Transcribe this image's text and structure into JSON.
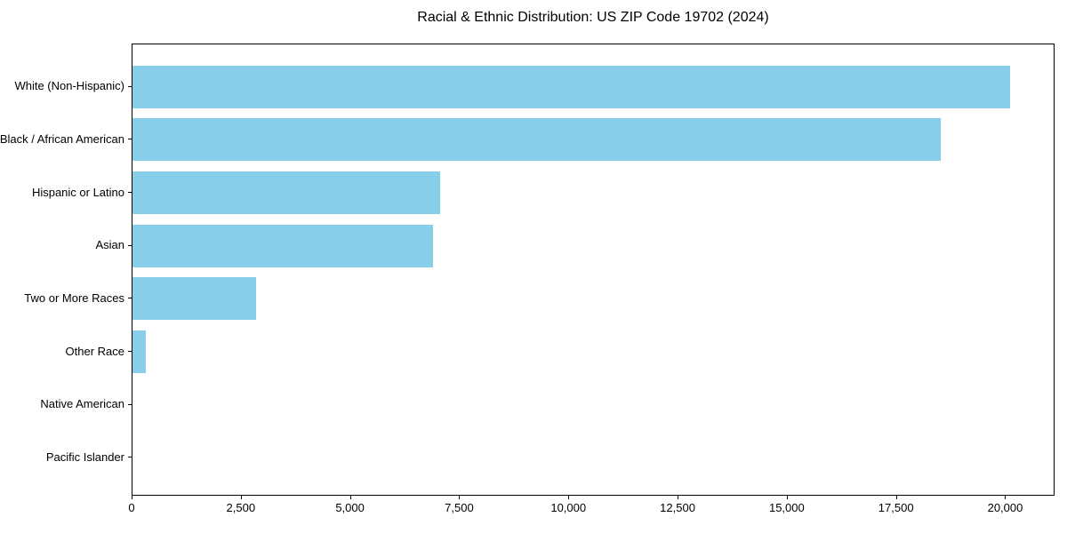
{
  "chart_data": {
    "type": "bar",
    "orientation": "horizontal",
    "title": "Racial & Ethnic Distribution: US ZIP Code 19702 (2024)",
    "categories": [
      "White (Non-Hispanic)",
      "Black / African American",
      "Hispanic or Latino",
      "Asian",
      "Two or More Races",
      "Other Race",
      "Native American",
      "Pacific Islander"
    ],
    "values": [
      20100,
      18500,
      7040,
      6880,
      2830,
      300,
      0,
      0
    ],
    "bar_color": "#87CEEB",
    "frame_color": "#000000",
    "background_color": "#ffffff",
    "xlabel": "",
    "ylabel": "",
    "xlim": [
      0,
      21130
    ],
    "xticks": [
      0,
      2500,
      5000,
      7500,
      10000,
      12500,
      15000,
      17500,
      20000
    ],
    "xtick_labels": [
      "0",
      "2,500",
      "5,000",
      "7,500",
      "10,000",
      "12,500",
      "15,000",
      "17,500",
      "20,000"
    ],
    "grid": false,
    "legend": null
  }
}
